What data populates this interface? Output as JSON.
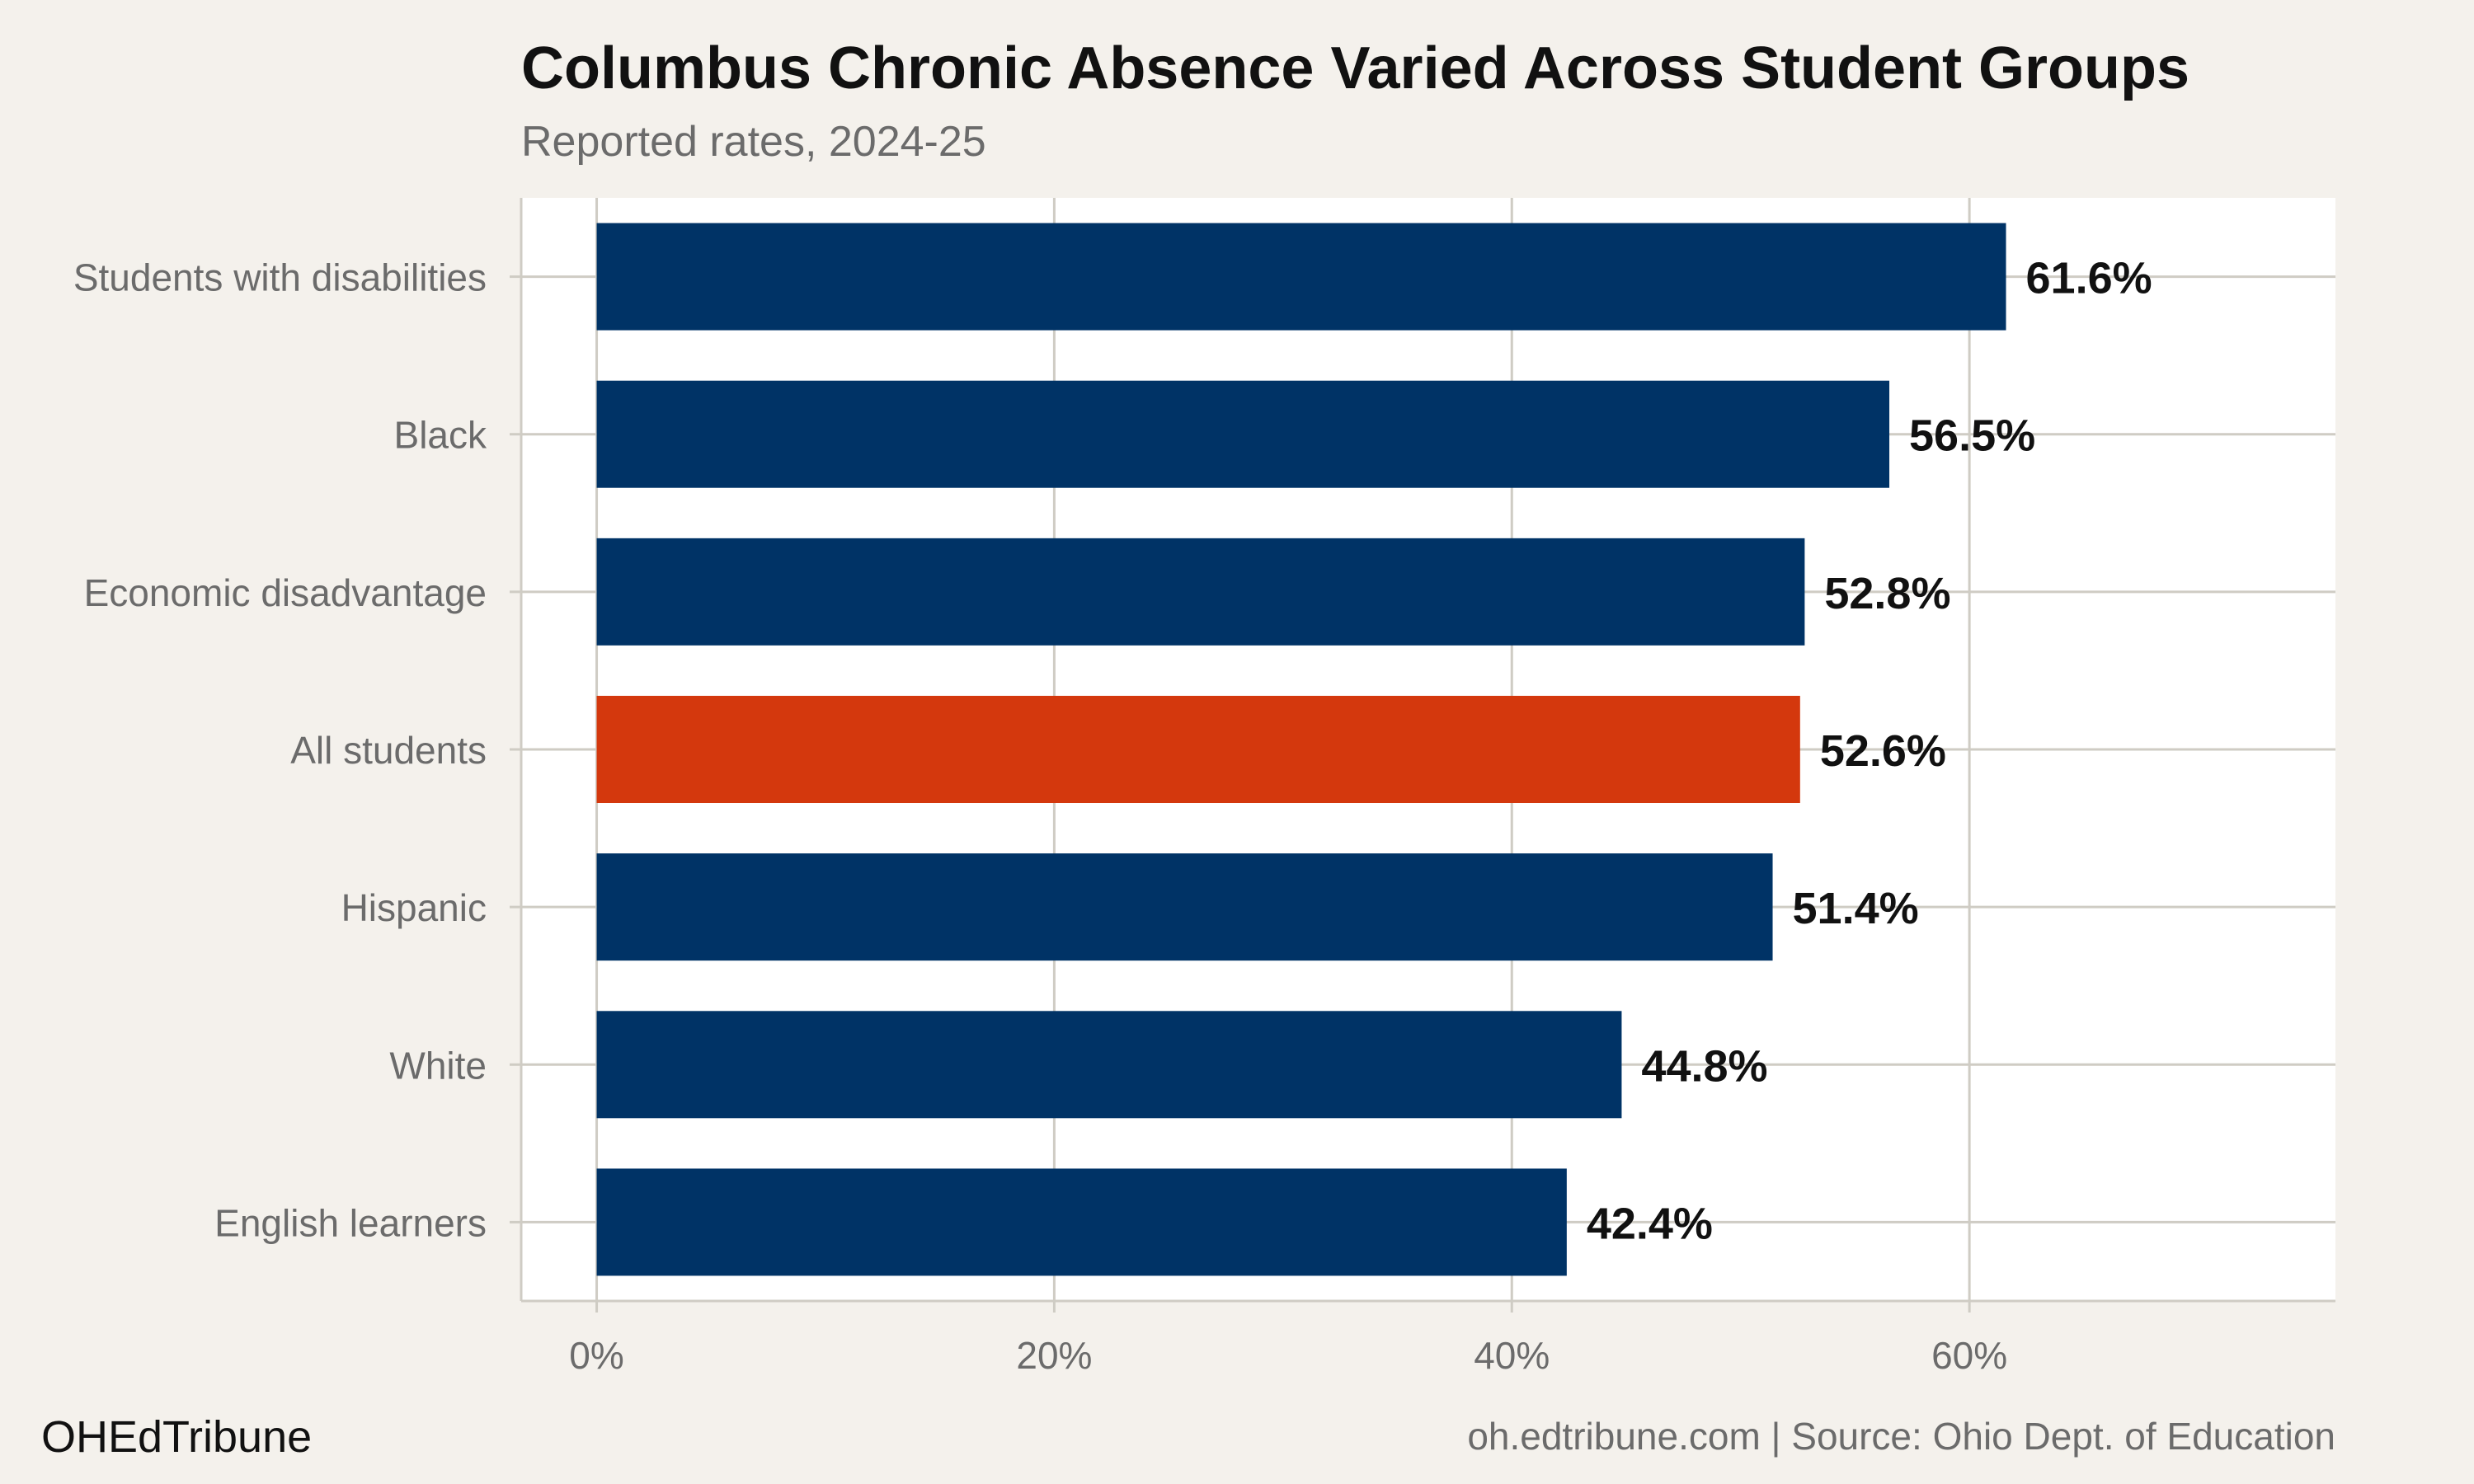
{
  "chart_data": {
    "type": "bar",
    "orientation": "horizontal",
    "title": "Columbus Chronic Absence Varied Across Student Groups",
    "subtitle": "Reported rates, 2024-25",
    "categories": [
      "Students with disabilities",
      "Black",
      "Economic disadvantage",
      "All students",
      "Hispanic",
      "White",
      "English learners"
    ],
    "values": [
      61.6,
      56.5,
      52.8,
      52.6,
      51.4,
      44.8,
      42.4
    ],
    "value_labels": [
      "61.6%",
      "56.5%",
      "52.8%",
      "52.6%",
      "51.4%",
      "44.8%",
      "42.4%"
    ],
    "highlight_category": "All students",
    "xlim": [
      -3.3,
      76.0
    ],
    "x_ticks": [
      0,
      20,
      40,
      60
    ],
    "x_tick_labels": [
      "0%",
      "20%",
      "40%",
      "60%"
    ],
    "xlabel": "",
    "ylabel": "",
    "grid": true,
    "legend": "none",
    "colors": {
      "bar": "#003366",
      "highlight": "#d4380d",
      "panel": "#ffffff",
      "background": "#f4f1ec",
      "grid": "#cfccc4"
    }
  },
  "footer": {
    "brand": "OHEdTribune",
    "source": "oh.edtribune.com | Source: Ohio Dept. of Education"
  }
}
